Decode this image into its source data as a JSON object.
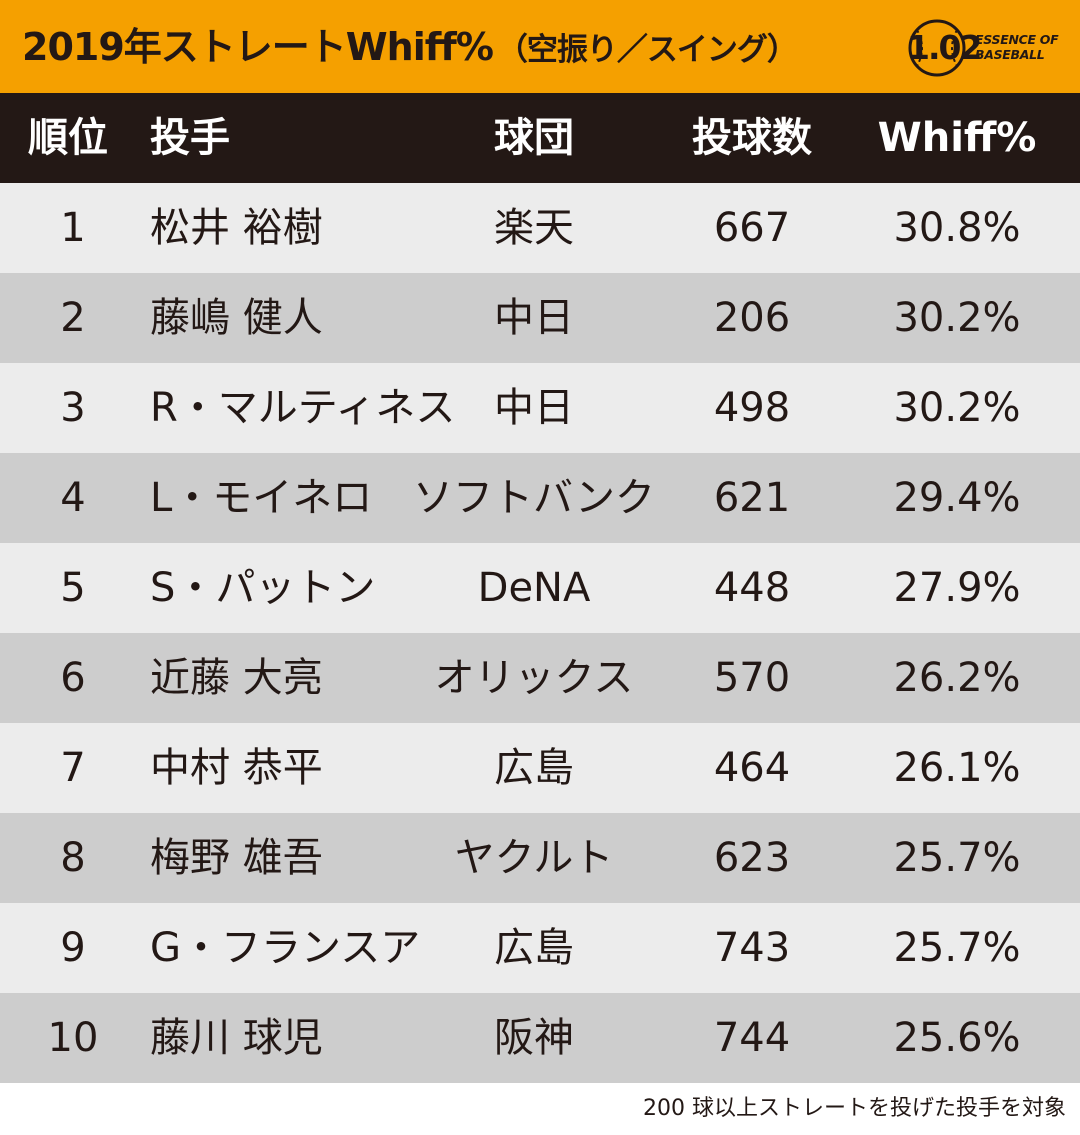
{
  "title": {
    "main": "2019年ストレートWhiff%",
    "sub": "（空振り／スイング）"
  },
  "logo": {
    "number": "1.02",
    "line1": "ESSENCE OF",
    "line2": "BASEBALL"
  },
  "chart_data": {
    "type": "table",
    "columns": [
      "順位",
      "投手",
      "球団",
      "投球数",
      "Whiff%"
    ],
    "rows": [
      {
        "rank": "1",
        "pitcher": "松井 裕樹",
        "team": "楽天",
        "pitches": "667",
        "whiff": "30.8%"
      },
      {
        "rank": "2",
        "pitcher": "藤嶋 健人",
        "team": "中日",
        "pitches": "206",
        "whiff": "30.2%"
      },
      {
        "rank": "3",
        "pitcher": "R・マルティネス",
        "team": "中日",
        "pitches": "498",
        "whiff": "30.2%"
      },
      {
        "rank": "4",
        "pitcher": "L・モイネロ",
        "team": "ソフトバンク",
        "pitches": "621",
        "whiff": "29.4%"
      },
      {
        "rank": "5",
        "pitcher": "S・パットン",
        "team": "DeNA",
        "pitches": "448",
        "whiff": "27.9%"
      },
      {
        "rank": "6",
        "pitcher": "近藤 大亮",
        "team": "オリックス",
        "pitches": "570",
        "whiff": "26.2%"
      },
      {
        "rank": "7",
        "pitcher": "中村 恭平",
        "team": "広島",
        "pitches": "464",
        "whiff": "26.1%"
      },
      {
        "rank": "8",
        "pitcher": "梅野 雄吾",
        "team": "ヤクルト",
        "pitches": "623",
        "whiff": "25.7%"
      },
      {
        "rank": "9",
        "pitcher": "G・フランスア",
        "team": "広島",
        "pitches": "743",
        "whiff": "25.7%"
      },
      {
        "rank": "10",
        "pitcher": "藤川 球児",
        "team": "阪神",
        "pitches": "744",
        "whiff": "25.6%"
      }
    ],
    "footnote": "200 球以上ストレートを投げた投手を対象"
  },
  "colors": {
    "title_bg": "#f5a000",
    "header_bg": "#231815",
    "row_light": "#ececec",
    "row_dark": "#cdcdcd",
    "text": "#231815"
  }
}
